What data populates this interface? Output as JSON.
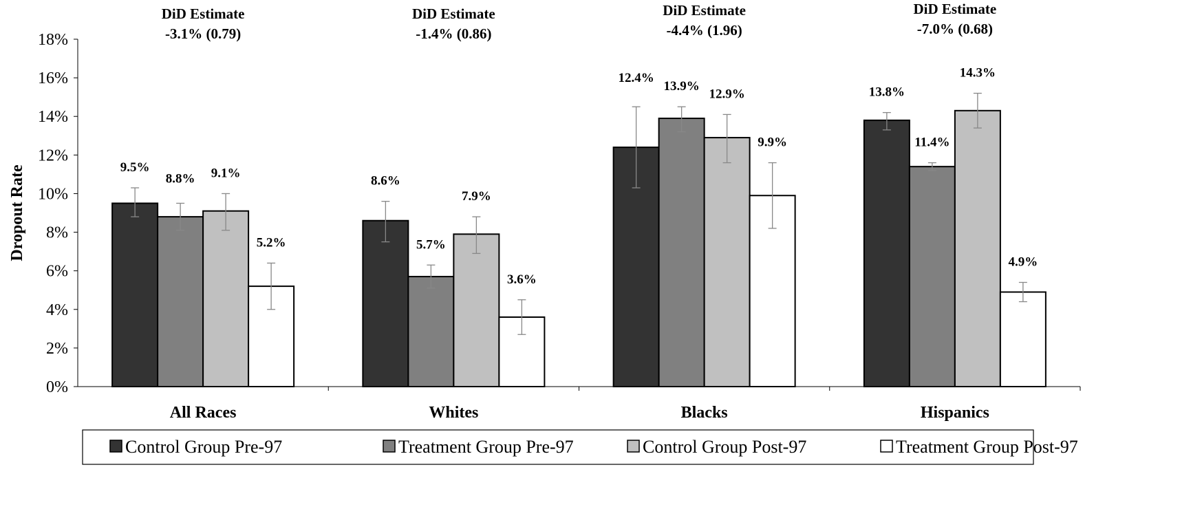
{
  "chart_data": {
    "type": "bar",
    "ylabel": "Dropout Rate",
    "xlabel": "",
    "ylim": [
      0,
      18
    ],
    "yticks": [
      "0%",
      "2%",
      "4%",
      "6%",
      "8%",
      "10%",
      "12%",
      "14%",
      "16%",
      "18%"
    ],
    "categories": [
      "All Races",
      "Whites",
      "Blacks",
      "Hispanics"
    ],
    "series": [
      {
        "name": "Control Group Pre-97",
        "color": "#333333",
        "values": [
          9.5,
          8.6,
          12.4,
          13.8
        ],
        "labels": [
          "9.5%",
          "8.6%",
          "12.4%",
          "13.8%"
        ],
        "err_low": [
          8.8,
          7.5,
          10.3,
          13.3
        ],
        "err_high": [
          10.3,
          9.6,
          14.5,
          14.2
        ]
      },
      {
        "name": "Treatment Group Pre-97",
        "color": "#808080",
        "values": [
          8.8,
          5.7,
          13.9,
          11.4
        ],
        "labels": [
          "8.8%",
          "5.7%",
          "13.9%",
          "11.4%"
        ],
        "err_low": [
          8.1,
          5.1,
          13.2,
          11.2
        ],
        "err_high": [
          9.5,
          6.3,
          14.5,
          11.6
        ]
      },
      {
        "name": "Control Group Post-97",
        "color": "#c0c0c0",
        "values": [
          9.1,
          7.9,
          12.9,
          14.3
        ],
        "labels": [
          "9.1%",
          "7.9%",
          "12.9%",
          "14.3%"
        ],
        "err_low": [
          8.1,
          6.9,
          11.6,
          13.4
        ],
        "err_high": [
          10.0,
          8.8,
          14.1,
          15.2
        ]
      },
      {
        "name": "Treatment Group Post-97",
        "color": "#ffffff",
        "values": [
          5.2,
          3.6,
          9.9,
          4.9
        ],
        "labels": [
          "5.2%",
          "3.6%",
          "9.9%",
          "4.9%"
        ],
        "err_low": [
          4.0,
          2.7,
          8.2,
          4.4
        ],
        "err_high": [
          6.4,
          4.5,
          11.6,
          5.4
        ]
      }
    ],
    "annotations": [
      {
        "title": "DiD Estimate",
        "value": "-3.1% (0.79)"
      },
      {
        "title": "DiD Estimate",
        "value": "-1.4% (0.86)"
      },
      {
        "title": "DiD Estimate",
        "value": "-4.4% (1.96)"
      },
      {
        "title": "DiD Estimate",
        "value": "-7.0% (0.68)"
      }
    ],
    "legend_position": "bottom",
    "grid": false
  }
}
